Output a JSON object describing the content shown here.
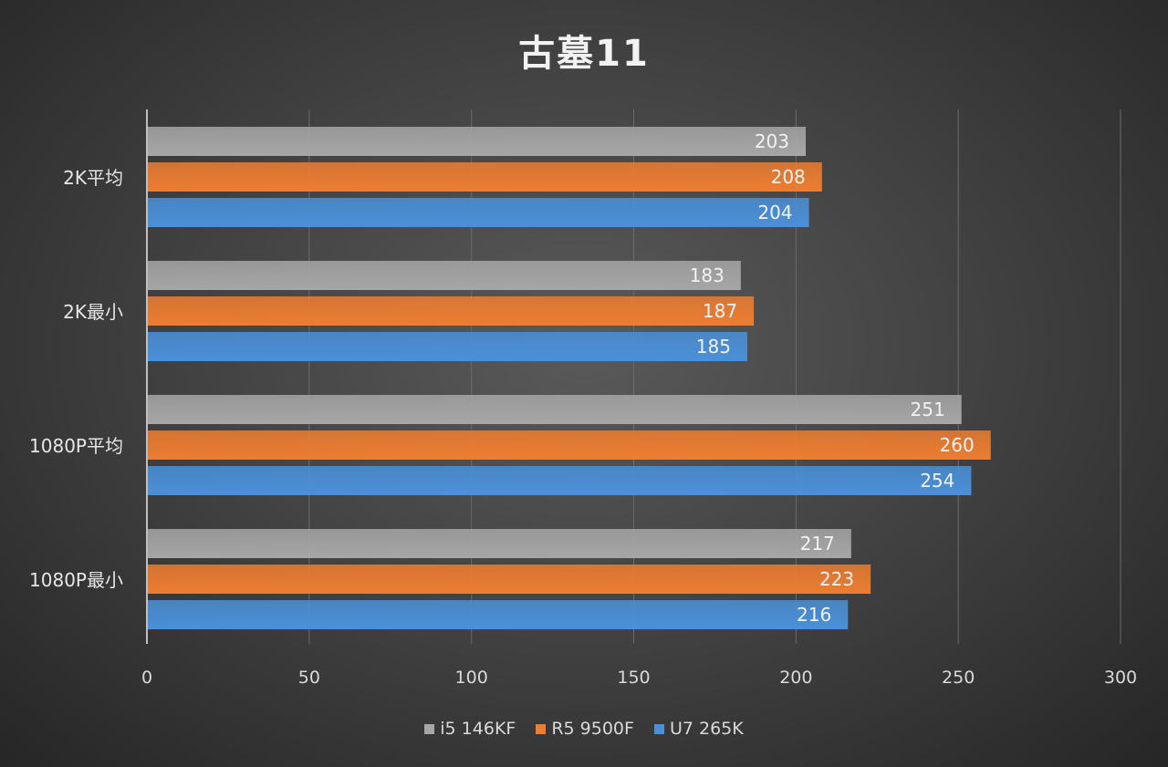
{
  "chart_data": {
    "type": "bar",
    "orientation": "horizontal",
    "title": "古墓11",
    "categories": [
      "2K平均",
      "2K最小",
      "1080P平均",
      "1080P最小"
    ],
    "series": [
      {
        "name": "i5 146KF",
        "color": "#a6a6a6",
        "values": [
          203,
          183,
          251,
          217
        ]
      },
      {
        "name": "R5 9500F",
        "color": "#ed7d31",
        "values": [
          208,
          187,
          260,
          223
        ]
      },
      {
        "name": "U7 265K",
        "color": "#4a90d9",
        "values": [
          204,
          185,
          254,
          216
        ]
      }
    ],
    "xlim": [
      0,
      300
    ],
    "xticks": [
      0,
      50,
      100,
      150,
      200,
      250,
      300
    ],
    "grid": true,
    "legend": "bottom"
  }
}
